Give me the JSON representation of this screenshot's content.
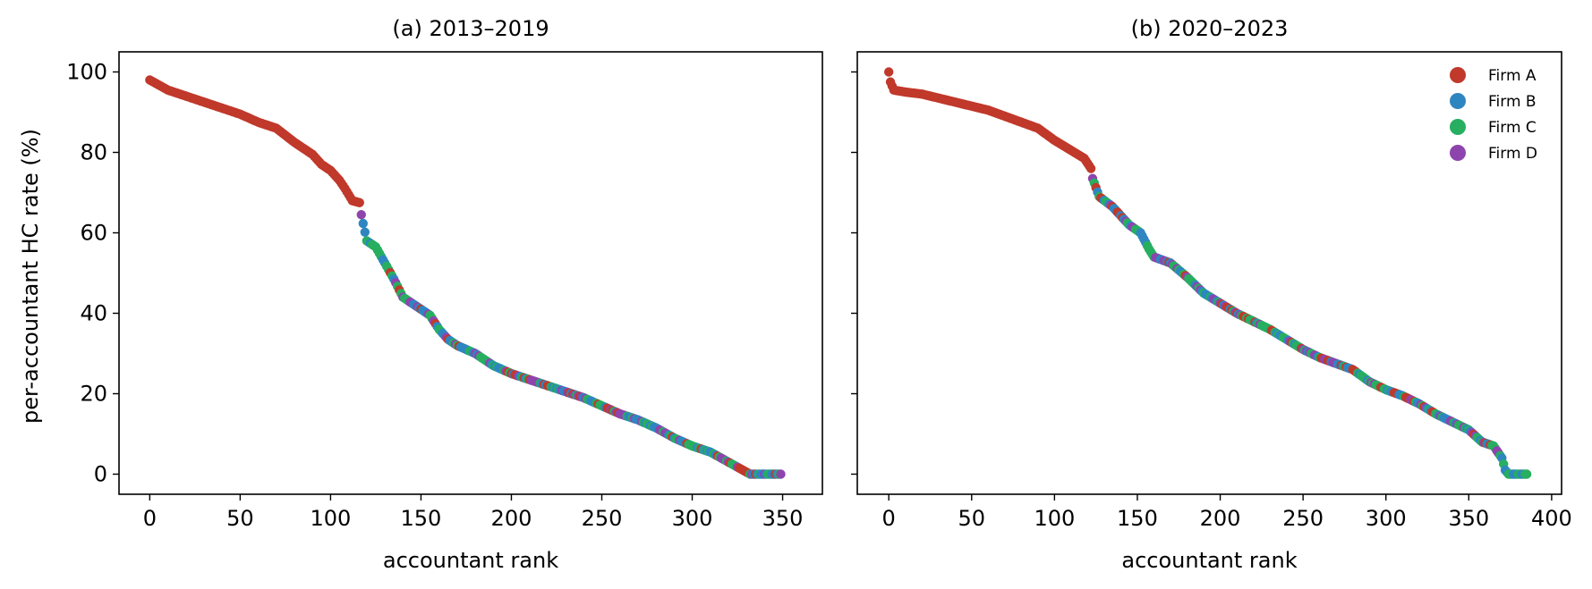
{
  "figure": {
    "ylabel": "per-accountant HC rate (%)",
    "legend": [
      "Firm A",
      "Firm B",
      "Firm C",
      "Firm D"
    ],
    "colors": {
      "Firm A": "#c0392b",
      "Firm B": "#2e86c1",
      "Firm C": "#27ae60",
      "Firm D": "#8e44ad"
    }
  },
  "chart_data": [
    {
      "type": "scatter",
      "title": "(a) 2013–2019",
      "xlabel": "accountant rank",
      "ylabel": "per-accountant HC rate (%)",
      "xlim": [
        -17,
        372
      ],
      "ylim": [
        -5,
        105
      ],
      "xticks": [
        0,
        50,
        100,
        150,
        200,
        250,
        300,
        350
      ],
      "yticks": [
        0,
        20,
        40,
        60,
        80,
        100
      ],
      "grid": false,
      "legend_position": "none",
      "n_points": 350,
      "curve_profile": [
        [
          0,
          98
        ],
        [
          10,
          95.5
        ],
        [
          30,
          92.5
        ],
        [
          50,
          89.5
        ],
        [
          60,
          87.5
        ],
        [
          70,
          86
        ],
        [
          80,
          82.5
        ],
        [
          90,
          79.5
        ],
        [
          95,
          77
        ],
        [
          100,
          75.5
        ],
        [
          105,
          73
        ],
        [
          108,
          71
        ],
        [
          112,
          68
        ],
        [
          116,
          67.5
        ],
        [
          117,
          64.5
        ],
        [
          120,
          58
        ],
        [
          125,
          56.5
        ],
        [
          130,
          52.5
        ],
        [
          135,
          48.5
        ],
        [
          140,
          44
        ],
        [
          145,
          42.5
        ],
        [
          150,
          41
        ],
        [
          155,
          39.5
        ],
        [
          160,
          36
        ],
        [
          165,
          33.5
        ],
        [
          170,
          32
        ],
        [
          180,
          30
        ],
        [
          190,
          27
        ],
        [
          200,
          25
        ],
        [
          210,
          23.5
        ],
        [
          220,
          22
        ],
        [
          230,
          20.5
        ],
        [
          240,
          19
        ],
        [
          250,
          17
        ],
        [
          260,
          15
        ],
        [
          270,
          13.5
        ],
        [
          280,
          11.5
        ],
        [
          290,
          9
        ],
        [
          300,
          7
        ],
        [
          310,
          5.5
        ],
        [
          320,
          3
        ],
        [
          328,
          1
        ],
        [
          332,
          0
        ],
        [
          349,
          0
        ]
      ],
      "color_segments": [
        {
          "from": 0,
          "to": 115,
          "firm": "Firm A"
        },
        {
          "from": 116,
          "to": 200,
          "firm": "mixed"
        },
        {
          "from": 201,
          "to": 349,
          "firm": "mixed"
        }
      ]
    },
    {
      "type": "scatter",
      "title": "(b) 2020–2023",
      "xlabel": "accountant rank",
      "ylabel": "",
      "xlim": [
        -19,
        406
      ],
      "ylim": [
        -5,
        105
      ],
      "xticks": [
        0,
        50,
        100,
        150,
        200,
        250,
        300,
        350,
        400
      ],
      "yticks": [
        0,
        20,
        40,
        60,
        80,
        100
      ],
      "grid": false,
      "legend_position": "upper right",
      "n_points": 386,
      "curve_profile": [
        [
          0,
          100
        ],
        [
          1,
          97.5
        ],
        [
          3,
          95.5
        ],
        [
          10,
          95
        ],
        [
          20,
          94.5
        ],
        [
          40,
          92.5
        ],
        [
          60,
          90.5
        ],
        [
          80,
          87.5
        ],
        [
          90,
          86
        ],
        [
          100,
          83
        ],
        [
          110,
          80.5
        ],
        [
          118,
          78.5
        ],
        [
          122,
          76
        ],
        [
          123,
          73.5
        ],
        [
          127,
          69
        ],
        [
          135,
          66.5
        ],
        [
          145,
          62
        ],
        [
          152,
          60
        ],
        [
          157,
          56
        ],
        [
          160,
          54
        ],
        [
          170,
          52.5
        ],
        [
          180,
          49
        ],
        [
          190,
          45
        ],
        [
          200,
          42.5
        ],
        [
          210,
          40
        ],
        [
          220,
          38
        ],
        [
          230,
          36
        ],
        [
          240,
          33.5
        ],
        [
          250,
          31
        ],
        [
          260,
          29
        ],
        [
          270,
          27.5
        ],
        [
          280,
          26
        ],
        [
          290,
          23
        ],
        [
          300,
          21
        ],
        [
          310,
          19.5
        ],
        [
          320,
          17.5
        ],
        [
          330,
          15
        ],
        [
          340,
          13
        ],
        [
          350,
          11
        ],
        [
          358,
          8
        ],
        [
          365,
          7
        ],
        [
          370,
          4
        ],
        [
          372,
          1
        ],
        [
          374,
          0
        ],
        [
          385,
          0
        ]
      ],
      "color_segments": [
        {
          "from": 0,
          "to": 121,
          "firm": "Firm A"
        },
        {
          "from": 122,
          "to": 385,
          "firm": "mixed"
        }
      ]
    }
  ]
}
